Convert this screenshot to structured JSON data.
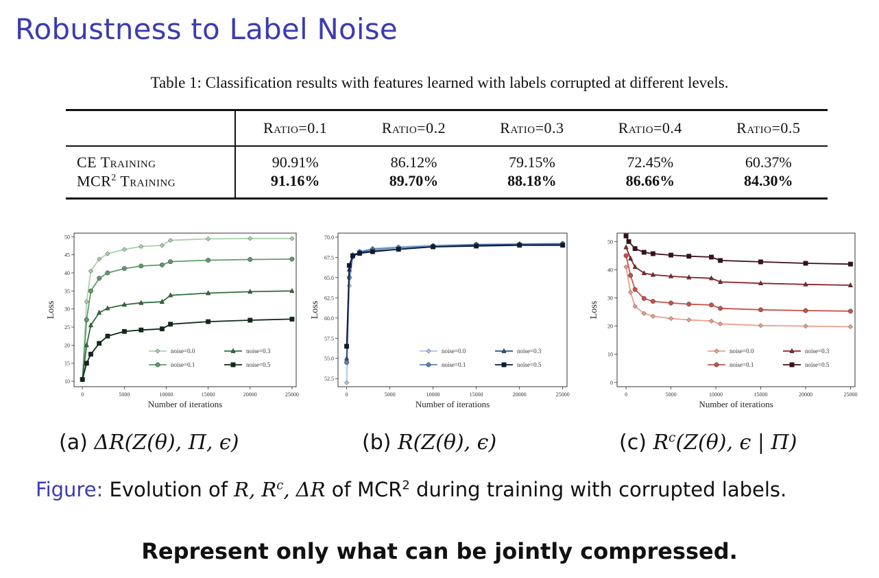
{
  "title": "Robustness to Label Noise",
  "table": {
    "caption": "Table 1: Classification results with features learned with labels corrupted at different levels.",
    "columns": [
      "Ratio=0.1",
      "Ratio=0.2",
      "Ratio=0.3",
      "Ratio=0.4",
      "Ratio=0.5"
    ],
    "rows": [
      {
        "label": "CE Training",
        "values": [
          "90.91%",
          "86.12%",
          "79.15%",
          "72.45%",
          "60.37%"
        ],
        "bold": false
      },
      {
        "label": "MCR",
        "label_sup": "2",
        "label_suffix": " Training",
        "values": [
          "91.16%",
          "89.70%",
          "88.18%",
          "86.66%",
          "84.30%"
        ],
        "bold": true
      }
    ]
  },
  "subcaptions": {
    "a": {
      "prefix": "(a)",
      "math": "ΔR(Z(θ), Π, ϵ)"
    },
    "b": {
      "prefix": "(b)",
      "math": "R(Z(θ), ϵ)"
    },
    "c": {
      "prefix": "(c)",
      "math_pre": "R",
      "math_sup": "c",
      "math_post": "(Z(θ), ϵ | Π)"
    }
  },
  "figure_caption": {
    "label": "Figure:",
    "text1": " Evolution of ",
    "math": "R, R",
    "math_sup": "c",
    "math2": ", ΔR",
    "text2": " of MCR",
    "text2_sup": "2",
    "text3": " during training with corrupted labels."
  },
  "tagline": "Represent only what can be jointly compressed.",
  "chart_data": [
    {
      "type": "line",
      "xlabel": "Number of iterations",
      "ylabel": "Loss",
      "xlim": [
        -1000,
        25500
      ],
      "ylim": [
        8.5,
        51
      ],
      "xticks": [
        0,
        5000,
        10000,
        15000,
        20000,
        25000
      ],
      "yticks": [
        10,
        15,
        20,
        25,
        30,
        35,
        40,
        45,
        50
      ],
      "ytick_labels": [
        "10",
        "15",
        "20",
        "25",
        "30",
        "35",
        "40",
        "45",
        "50"
      ],
      "legend": "lower-right",
      "series": [
        {
          "name": "noise=0.0",
          "color": "#a9d1ae",
          "marker": "diamond",
          "x": [
            0,
            500,
            1000,
            2000,
            3000,
            5000,
            7000,
            9500,
            10500,
            15000,
            20000,
            25000
          ],
          "y": [
            10.5,
            32,
            40.5,
            43.8,
            45.3,
            46.5,
            47.3,
            47.6,
            49,
            49.4,
            49.5,
            49.5
          ]
        },
        {
          "name": "noise=0.1",
          "color": "#5e9d6b",
          "marker": "circle",
          "x": [
            0,
            500,
            1000,
            2000,
            3000,
            5000,
            7000,
            9500,
            10500,
            15000,
            20000,
            25000
          ],
          "y": [
            10.5,
            27,
            35,
            38.5,
            40,
            41.2,
            41.9,
            42.2,
            43.1,
            43.5,
            43.7,
            43.8
          ]
        },
        {
          "name": "noise=0.3",
          "color": "#2e6e3e",
          "marker": "triangle",
          "x": [
            0,
            500,
            1000,
            2000,
            3000,
            5000,
            7000,
            9500,
            10500,
            15000,
            20000,
            25000
          ],
          "y": [
            10.5,
            20,
            25.5,
            29,
            30.2,
            31.2,
            31.7,
            32,
            33.8,
            34.4,
            34.8,
            35
          ]
        },
        {
          "name": "noise=0.5",
          "color": "#0f2a18",
          "marker": "square",
          "x": [
            0,
            500,
            1000,
            2000,
            3000,
            5000,
            7000,
            9500,
            10500,
            15000,
            20000,
            25000
          ],
          "y": [
            10.5,
            15,
            17.5,
            20.5,
            22.5,
            23.8,
            24.2,
            24.5,
            25.8,
            26.5,
            26.9,
            27.2
          ]
        }
      ]
    },
    {
      "type": "line",
      "xlabel": "Number of iterations",
      "ylabel": "Loss",
      "xlim": [
        -1000,
        25500
      ],
      "ylim": [
        51.5,
        70.5
      ],
      "xticks": [
        0,
        5000,
        10000,
        15000,
        20000,
        25000
      ],
      "yticks": [
        52.5,
        55,
        57.5,
        60,
        62.5,
        65,
        67.5,
        70
      ],
      "ytick_labels": [
        "52.5",
        "55.0",
        "57.5",
        "60.0",
        "62.5",
        "65.0",
        "67.5",
        "70.0"
      ],
      "legend": "lower-right",
      "series": [
        {
          "name": "noise=0.0",
          "color": "#a8c6e4",
          "marker": "diamond",
          "x": [
            0,
            300,
            700,
            1500,
            3000,
            6000,
            10000,
            15000,
            20000,
            25000
          ],
          "y": [
            52,
            64,
            67.5,
            68.2,
            68.6,
            68.8,
            69,
            69.1,
            69.2,
            69.2
          ]
        },
        {
          "name": "noise=0.1",
          "color": "#5784bb",
          "marker": "circle",
          "x": [
            0,
            300,
            700,
            1500,
            3000,
            6000,
            10000,
            15000,
            20000,
            25000
          ],
          "y": [
            54.5,
            65,
            67.6,
            68.2,
            68.5,
            68.7,
            68.9,
            69.1,
            69.1,
            69.2
          ]
        },
        {
          "name": "noise=0.3",
          "color": "#2c4f7e",
          "marker": "triangle",
          "x": [
            0,
            300,
            700,
            1500,
            3000,
            6000,
            10000,
            15000,
            20000,
            25000
          ],
          "y": [
            55,
            66,
            67.8,
            68.1,
            68.3,
            68.5,
            68.8,
            69,
            69.1,
            69.1
          ]
        },
        {
          "name": "noise=0.5",
          "color": "#0c1a33",
          "marker": "square",
          "x": [
            0,
            300,
            700,
            1500,
            3000,
            6000,
            10000,
            15000,
            20000,
            25000
          ],
          "y": [
            56.5,
            66.5,
            67.7,
            68,
            68.2,
            68.5,
            68.8,
            68.9,
            69,
            69
          ]
        }
      ]
    },
    {
      "type": "line",
      "xlabel": "Number of iterations",
      "ylabel": "Loss",
      "xlim": [
        -1000,
        25500
      ],
      "ylim": [
        -1.5,
        53
      ],
      "xticks": [
        0,
        5000,
        10000,
        15000,
        20000,
        25000
      ],
      "yticks": [
        0,
        10,
        20,
        30,
        40,
        50
      ],
      "ytick_labels": [
        "0",
        "10",
        "20",
        "30",
        "40",
        "50"
      ],
      "legend": "lower-right",
      "series": [
        {
          "name": "noise=0.0",
          "color": "#ee9e8c",
          "marker": "diamond",
          "x": [
            0,
            500,
            1000,
            2000,
            3000,
            5000,
            7000,
            9500,
            10500,
            15000,
            20000,
            25000
          ],
          "y": [
            41,
            32,
            27,
            24.5,
            23.5,
            22.7,
            22.2,
            21.8,
            20.8,
            20.2,
            20,
            19.8
          ]
        },
        {
          "name": "noise=0.1",
          "color": "#c8524a",
          "marker": "circle",
          "x": [
            0,
            500,
            1000,
            2000,
            3000,
            5000,
            7000,
            9500,
            10500,
            15000,
            20000,
            25000
          ],
          "y": [
            45,
            38,
            33,
            29.8,
            28.8,
            28.2,
            27.8,
            27.5,
            26.3,
            25.8,
            25.5,
            25.3
          ]
        },
        {
          "name": "noise=0.3",
          "color": "#882626",
          "marker": "triangle",
          "x": [
            0,
            500,
            1000,
            2000,
            3000,
            5000,
            7000,
            9500,
            10500,
            15000,
            20000,
            25000
          ],
          "y": [
            48,
            44,
            41,
            38.8,
            38.2,
            37.7,
            37.3,
            37,
            35.7,
            35.2,
            34.8,
            34.5
          ]
        },
        {
          "name": "noise=0.5",
          "color": "#3d0f19",
          "marker": "square",
          "x": [
            0,
            300,
            1000,
            2000,
            3000,
            5000,
            7000,
            9500,
            10500,
            15000,
            20000,
            25000
          ],
          "y": [
            52,
            50,
            47.5,
            46.2,
            45.7,
            45.2,
            44.8,
            44.5,
            43.3,
            42.8,
            42.3,
            42
          ]
        }
      ]
    }
  ]
}
